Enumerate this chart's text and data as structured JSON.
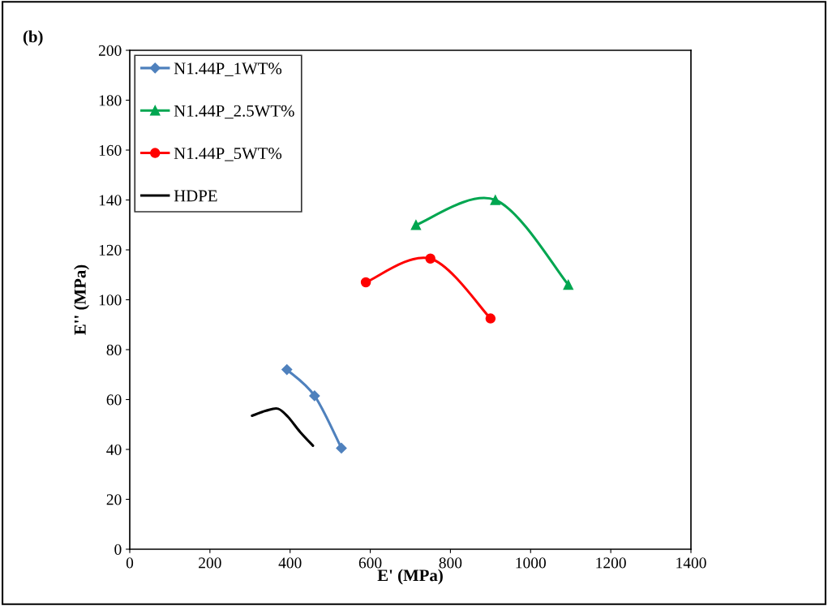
{
  "chart_data": {
    "type": "line",
    "title": "(b)",
    "xlabel": "E' (MPa)",
    "ylabel": "E'' (MPa)",
    "xlim": [
      0,
      1400
    ],
    "xticks": [
      0,
      200,
      400,
      600,
      800,
      1000,
      1200,
      1400
    ],
    "ylim": [
      0,
      200
    ],
    "yticks": [
      0,
      20,
      40,
      60,
      80,
      100,
      120,
      140,
      160,
      180,
      200
    ],
    "grid": false,
    "legend": "top left",
    "line_style": "solid",
    "series": [
      {
        "name": "N1.44P_1WT%",
        "color": "#4f81bd",
        "marker": "diamond",
        "x": [
          392,
          461,
          528
        ],
        "values": [
          72,
          61.5,
          40.5
        ]
      },
      {
        "name": "N1.44P_2.5WT%",
        "color": "#00a650",
        "marker": "triangle",
        "x": [
          714,
          912,
          1094
        ],
        "values": [
          130,
          140,
          106
        ]
      },
      {
        "name": "N1.44P_5WT%",
        "color": "#ff0000",
        "marker": "circle",
        "x": [
          589,
          750,
          900
        ],
        "values": [
          107,
          116.5,
          92.5
        ]
      },
      {
        "name": "HDPE",
        "color": "#000000",
        "marker": "none",
        "x": [
          305,
          340,
          370,
          395,
          425,
          457
        ],
        "values": [
          53.5,
          55.5,
          56.3,
          53,
          47,
          41.5
        ]
      }
    ]
  }
}
